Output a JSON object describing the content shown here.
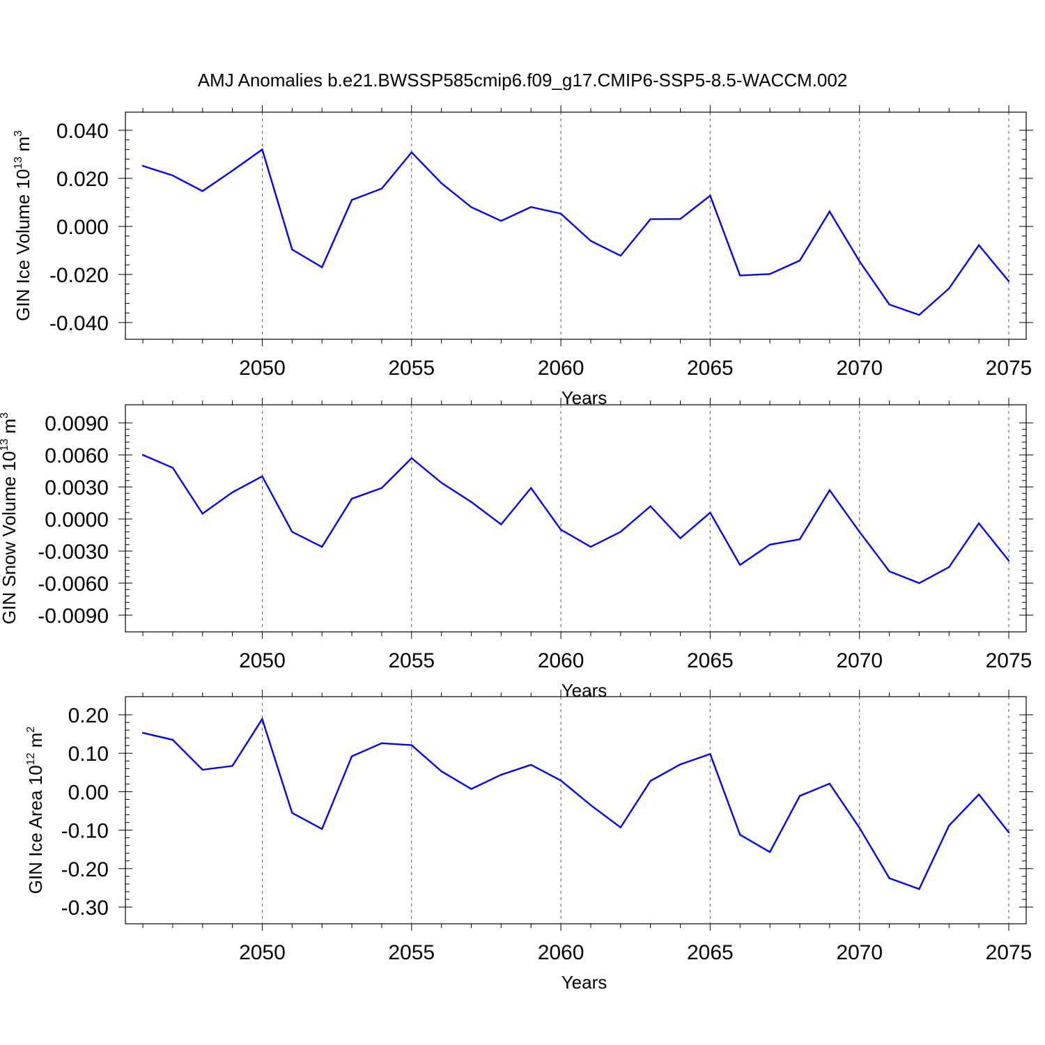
{
  "title": "AMJ Anomalies b.e21.BWSSP585cmip6.f09_g17.CMIP6-SSP5-8.5-WACCM.002",
  "colors": {
    "line": "#0000ff",
    "axis": "#000000",
    "grid": "#555555",
    "background": "#ffffff"
  },
  "chart_data": [
    {
      "type": "line",
      "xlabel": "Years",
      "ylabel": {
        "text": "GIN Ice Volume 10",
        "exp": "13",
        "unit": " m",
        "unit_exp": "3"
      },
      "xlim": [
        2046,
        2075
      ],
      "ylim": [
        -0.04,
        0.04
      ],
      "x_ticks": [
        "2050",
        "2055",
        "2060",
        "2065",
        "2070",
        "2075"
      ],
      "y_ticks": [
        "0.040",
        "0.020",
        "0.000",
        "-0.020",
        "-0.040"
      ],
      "y_tick_values": [
        0.04,
        0.02,
        0.0,
        -0.02,
        -0.04
      ],
      "grid": "vertical dashed at labeled years",
      "x": [
        2046,
        2047,
        2048,
        2049,
        2050,
        2051,
        2052,
        2053,
        2054,
        2055,
        2056,
        2057,
        2058,
        2059,
        2060,
        2061,
        2062,
        2063,
        2064,
        2065,
        2066,
        2067,
        2068,
        2069,
        2070,
        2071,
        2072,
        2073,
        2074,
        2075
      ],
      "values": [
        0.0252,
        0.0212,
        0.0147,
        0.0232,
        0.032,
        -0.0096,
        -0.017,
        0.011,
        0.0157,
        0.0308,
        0.018,
        0.008,
        0.0023,
        0.0081,
        0.0053,
        -0.006,
        -0.0122,
        0.003,
        0.0031,
        0.0128,
        -0.0204,
        -0.0198,
        -0.0142,
        0.0062,
        -0.0145,
        -0.0325,
        -0.0368,
        -0.0258,
        -0.0078,
        -0.0228
      ]
    },
    {
      "type": "line",
      "xlabel": "Years",
      "ylabel": {
        "text": "GIN Snow Volume 10",
        "exp": "13",
        "unit": " m",
        "unit_exp": "3"
      },
      "xlim": [
        2046,
        2075
      ],
      "ylim": [
        -0.009,
        0.009
      ],
      "x_ticks": [
        "2050",
        "2055",
        "2060",
        "2065",
        "2070",
        "2075"
      ],
      "y_ticks": [
        "0.0090",
        "0.0060",
        "0.0030",
        "0.0000",
        "-0.0030",
        "-0.0060",
        "-0.0090"
      ],
      "y_tick_values": [
        0.009,
        0.006,
        0.003,
        0.0,
        -0.003,
        -0.006,
        -0.009
      ],
      "grid": "vertical dashed at labeled years",
      "x": [
        2046,
        2047,
        2048,
        2049,
        2050,
        2051,
        2052,
        2053,
        2054,
        2055,
        2056,
        2057,
        2058,
        2059,
        2060,
        2061,
        2062,
        2063,
        2064,
        2065,
        2066,
        2067,
        2068,
        2069,
        2070,
        2071,
        2072,
        2073,
        2074,
        2075
      ],
      "values": [
        0.006,
        0.0048,
        0.0005,
        0.0025,
        0.004,
        -0.0012,
        -0.0026,
        0.0019,
        0.0029,
        0.0057,
        0.0034,
        0.0016,
        -0.0005,
        0.0029,
        -0.001,
        -0.0026,
        -0.0012,
        0.0012,
        -0.0018,
        0.0006,
        -0.0043,
        -0.0024,
        -0.0019,
        0.0027,
        -0.0012,
        -0.0049,
        -0.006,
        -0.0045,
        -0.0004,
        -0.0039
      ]
    },
    {
      "type": "line",
      "xlabel": "Years",
      "ylabel": {
        "text": "GIN Ice Area 10",
        "exp": "12",
        "unit": " m",
        "unit_exp": "2"
      },
      "xlim": [
        2046,
        2075
      ],
      "ylim": [
        -0.3,
        0.2
      ],
      "x_ticks": [
        "2050",
        "2055",
        "2060",
        "2065",
        "2070",
        "2075"
      ],
      "y_ticks": [
        "0.20",
        "0.10",
        "0.00",
        "-0.10",
        "-0.20",
        "-0.30"
      ],
      "y_tick_values": [
        0.2,
        0.1,
        0.0,
        -0.1,
        -0.2,
        -0.3
      ],
      "grid": "vertical dashed at labeled years",
      "x": [
        2046,
        2047,
        2048,
        2049,
        2050,
        2051,
        2052,
        2053,
        2054,
        2055,
        2056,
        2057,
        2058,
        2059,
        2060,
        2061,
        2062,
        2063,
        2064,
        2065,
        2066,
        2067,
        2068,
        2069,
        2070,
        2071,
        2072,
        2073,
        2074,
        2075
      ],
      "values": [
        0.153,
        0.135,
        0.057,
        0.067,
        0.189,
        -0.055,
        -0.097,
        0.092,
        0.126,
        0.121,
        0.053,
        0.007,
        0.044,
        0.07,
        0.029,
        -0.035,
        -0.093,
        0.028,
        0.071,
        0.098,
        -0.112,
        -0.157,
        -0.011,
        0.021,
        -0.094,
        -0.225,
        -0.253,
        -0.088,
        -0.007,
        -0.106
      ]
    }
  ]
}
